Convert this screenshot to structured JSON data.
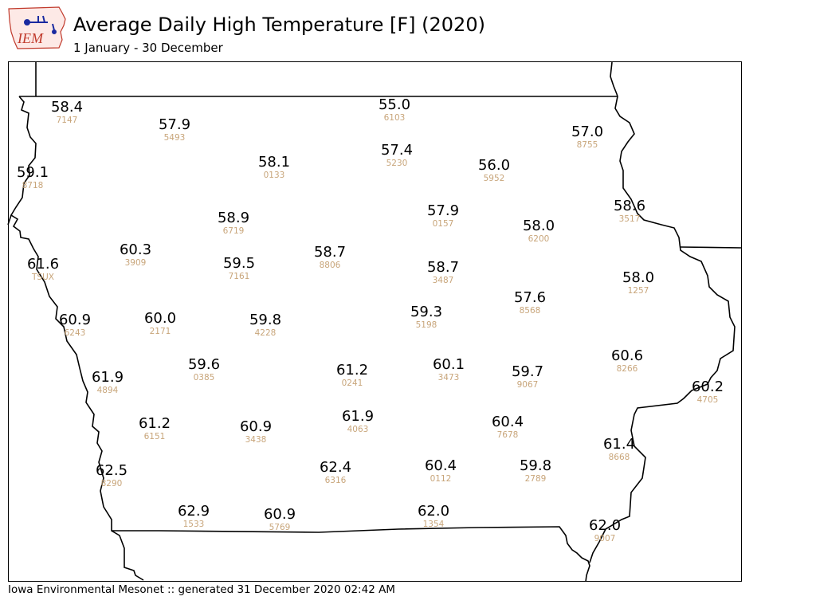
{
  "header": {
    "title": "Average Daily High Temperature [F] (2020)",
    "subtitle": "1 January - 30 December",
    "logo_text": "IEM"
  },
  "footer": {
    "text": "Iowa Environmental Mesonet :: generated 31 December 2020 02:42 AM"
  },
  "colors": {
    "value_text": "#000000",
    "station_text": "#c8a57a",
    "logo_red": "#c0392b",
    "logo_blue": "#1a2aa0"
  },
  "stations": [
    {
      "value": "58.4",
      "id": "7147"
    },
    {
      "value": "55.0",
      "id": "6103"
    },
    {
      "value": "57.9",
      "id": "5493"
    },
    {
      "value": "57.0",
      "id": "8755"
    },
    {
      "value": "57.4",
      "id": "5230"
    },
    {
      "value": "59.1",
      "id": "8718"
    },
    {
      "value": "58.1",
      "id": "0133"
    },
    {
      "value": "56.0",
      "id": "5952"
    },
    {
      "value": "58.6",
      "id": "3517"
    },
    {
      "value": "57.9",
      "id": "0157"
    },
    {
      "value": "58.9",
      "id": "6719"
    },
    {
      "value": "58.0",
      "id": "6200"
    },
    {
      "value": "60.3",
      "id": "3909"
    },
    {
      "value": "61.6",
      "id": "TSUX"
    },
    {
      "value": "59.5",
      "id": "7161"
    },
    {
      "value": "58.7",
      "id": "8806"
    },
    {
      "value": "58.7",
      "id": "3487"
    },
    {
      "value": "58.0",
      "id": "1257"
    },
    {
      "value": "57.6",
      "id": "8568"
    },
    {
      "value": "59.3",
      "id": "5198"
    },
    {
      "value": "60.9",
      "id": "6243"
    },
    {
      "value": "60.0",
      "id": "2171"
    },
    {
      "value": "59.8",
      "id": "4228"
    },
    {
      "value": "60.6",
      "id": "8266"
    },
    {
      "value": "59.6",
      "id": "0385"
    },
    {
      "value": "60.1",
      "id": "3473"
    },
    {
      "value": "61.2",
      "id": "0241"
    },
    {
      "value": "59.7",
      "id": "9067"
    },
    {
      "value": "61.9",
      "id": "4894"
    },
    {
      "value": "60.2",
      "id": "4705"
    },
    {
      "value": "61.9",
      "id": "4063"
    },
    {
      "value": "61.2",
      "id": "6151"
    },
    {
      "value": "60.4",
      "id": "7678"
    },
    {
      "value": "60.9",
      "id": "3438"
    },
    {
      "value": "61.4",
      "id": "8668"
    },
    {
      "value": "62.5",
      "id": "8290"
    },
    {
      "value": "62.4",
      "id": "6316"
    },
    {
      "value": "60.4",
      "id": "0112"
    },
    {
      "value": "59.8",
      "id": "2789"
    },
    {
      "value": "62.9",
      "id": "1533"
    },
    {
      "value": "62.0",
      "id": "1354"
    },
    {
      "value": "60.9",
      "id": "5769"
    },
    {
      "value": "62.0",
      "id": "9007"
    }
  ]
}
